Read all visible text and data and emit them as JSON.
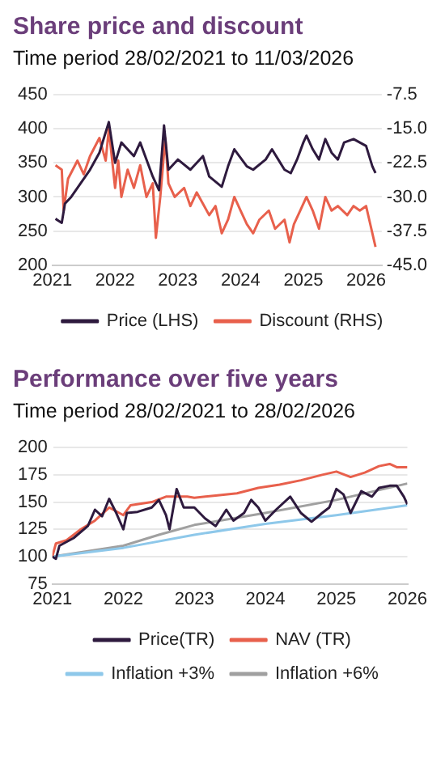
{
  "chart_data": [
    {
      "type": "line",
      "title": "Share price and discount",
      "subtitle": "Time period 28/02/2021 to 11/03/2026",
      "xlim": [
        2021,
        2026.25
      ],
      "xticks": [
        2021,
        2022,
        2023,
        2024,
        2025,
        2026
      ],
      "ylim": [
        200,
        450
      ],
      "yticks": [
        200,
        250,
        300,
        350,
        400,
        450
      ],
      "y2lim": [
        -45,
        -7.5
      ],
      "y2ticks": [
        {
          "value": -45,
          "label": "-45.0"
        },
        -37.5,
        {
          "value": -30,
          "label": "-30.0"
        },
        -22.5,
        {
          "value": -15,
          "label": "-15.0"
        },
        -7.5
      ],
      "grid": "y",
      "legend": "bottom",
      "marker": "none",
      "series": [
        {
          "name": "Price (LHS)",
          "color": "#2e1a3e",
          "x": [
            2021.05,
            2021.1,
            2021.15,
            2021.2,
            2021.3,
            2021.6,
            2021.75,
            2021.9,
            2022.0,
            2022.1,
            2022.3,
            2022.4,
            2022.5,
            2022.6,
            2022.7,
            2022.78,
            2022.85,
            2023.0,
            2023.2,
            2023.4,
            2023.5,
            2023.7,
            2023.8,
            2023.9,
            2024.1,
            2024.2,
            2024.4,
            2024.5,
            2024.6,
            2024.7,
            2024.8,
            2024.9,
            2025.0,
            2025.05,
            2025.15,
            2025.25,
            2025.35,
            2025.45,
            2025.55,
            2025.65,
            2025.8,
            2025.9,
            2026.0,
            2026.1,
            2026.15
          ],
          "values": [
            268,
            265,
            262,
            290,
            300,
            340,
            365,
            410,
            350,
            380,
            360,
            380,
            355,
            330,
            310,
            405,
            340,
            355,
            340,
            360,
            330,
            315,
            345,
            370,
            345,
            340,
            355,
            370,
            355,
            340,
            335,
            355,
            380,
            390,
            370,
            355,
            385,
            365,
            355,
            380,
            385,
            380,
            375,
            345,
            335
          ]
        },
        {
          "name": "Discount (RHS)",
          "color": "#e8604c",
          "axis": "y2",
          "x": [
            2021.05,
            2021.15,
            2021.18,
            2021.25,
            2021.4,
            2021.5,
            2021.6,
            2021.75,
            2021.85,
            2021.9,
            2022.0,
            2022.05,
            2022.1,
            2022.2,
            2022.3,
            2022.4,
            2022.5,
            2022.6,
            2022.65,
            2022.72,
            2022.8,
            2022.85,
            2022.95,
            2023.1,
            2023.2,
            2023.3,
            2023.5,
            2023.6,
            2023.7,
            2023.8,
            2023.9,
            2024.0,
            2024.1,
            2024.2,
            2024.3,
            2024.45,
            2024.55,
            2024.7,
            2024.78,
            2024.85,
            2024.95,
            2025.05,
            2025.15,
            2025.25,
            2025.35,
            2025.45,
            2025.55,
            2025.7,
            2025.8,
            2025.9,
            2026.0,
            2026.05,
            2026.15
          ],
          "values": [
            -23,
            -24,
            -33,
            -26,
            -22,
            -25,
            -21,
            -17,
            -22,
            -15,
            -28,
            -22,
            -30,
            -24,
            -28,
            -23,
            -30,
            -27,
            -39,
            -30,
            -17,
            -27,
            -30,
            -28,
            -32,
            -29,
            -34,
            -32,
            -38,
            -35,
            -30,
            -33,
            -36,
            -38,
            -35,
            -33,
            -37,
            -35,
            -40,
            -36,
            -33,
            -30,
            -33,
            -37,
            -30,
            -33,
            -32,
            -34,
            -32,
            -33,
            -32,
            -35,
            -41
          ]
        }
      ]
    },
    {
      "type": "line",
      "title": "Performance over five years",
      "subtitle": "Time period 28/02/2021 to 28/02/2026",
      "xlim": [
        2021,
        2026
      ],
      "xticks": [
        2021,
        2022,
        2023,
        2024,
        2025,
        2026
      ],
      "ylim": [
        75,
        200
      ],
      "yticks": [
        75,
        100,
        125,
        150,
        175,
        200
      ],
      "grid": "y",
      "legend": "bottom",
      "marker": "none",
      "series": [
        {
          "name": "Price(TR)",
          "color": "#2e1a3e",
          "x": [
            2021,
            2021.05,
            2021.1,
            2021.3,
            2021.5,
            2021.6,
            2021.7,
            2021.8,
            2021.9,
            2022.0,
            2022.05,
            2022.2,
            2022.4,
            2022.5,
            2022.6,
            2022.65,
            2022.75,
            2022.85,
            2023.0,
            2023.15,
            2023.3,
            2023.45,
            2023.55,
            2023.7,
            2023.8,
            2023.9,
            2024.0,
            2024.15,
            2024.35,
            2024.5,
            2024.65,
            2024.8,
            2024.9,
            2025.0,
            2025.1,
            2025.2,
            2025.35,
            2025.5,
            2025.6,
            2025.75,
            2025.85,
            2025.95,
            2026.0
          ],
          "values": [
            100,
            98,
            110,
            117,
            128,
            143,
            137,
            153,
            140,
            125,
            140,
            141,
            145,
            152,
            138,
            125,
            162,
            145,
            145,
            135,
            128,
            143,
            133,
            140,
            152,
            145,
            133,
            143,
            155,
            140,
            132,
            140,
            145,
            162,
            157,
            140,
            160,
            155,
            163,
            165,
            165,
            155,
            148
          ]
        },
        {
          "name": "NAV (TR)",
          "color": "#e8604c",
          "x": [
            2021,
            2021.05,
            2021.2,
            2021.4,
            2021.6,
            2021.8,
            2022.0,
            2022.1,
            2022.4,
            2022.6,
            2022.9,
            2023.0,
            2023.3,
            2023.6,
            2023.9,
            2024.2,
            2024.5,
            2024.8,
            2025.0,
            2025.2,
            2025.4,
            2025.6,
            2025.75,
            2025.85,
            2026.0
          ],
          "values": [
            100,
            112,
            115,
            125,
            133,
            145,
            138,
            147,
            150,
            155,
            155,
            154,
            156,
            158,
            163,
            166,
            170,
            175,
            178,
            173,
            177,
            183,
            185,
            182,
            182
          ]
        },
        {
          "name": "Inflation +3%",
          "color": "#8ec8ea",
          "x": [
            2021,
            2022,
            2023,
            2024,
            2025,
            2026
          ],
          "values": [
            100,
            108,
            120,
            130,
            138,
            147
          ]
        },
        {
          "name": "Inflation +6%",
          "color": "#a0a0a0",
          "x": [
            2021,
            2022,
            2022.5,
            2023,
            2024,
            2025,
            2026
          ],
          "values": [
            100,
            110,
            120,
            129,
            140,
            152,
            167
          ]
        }
      ]
    }
  ]
}
